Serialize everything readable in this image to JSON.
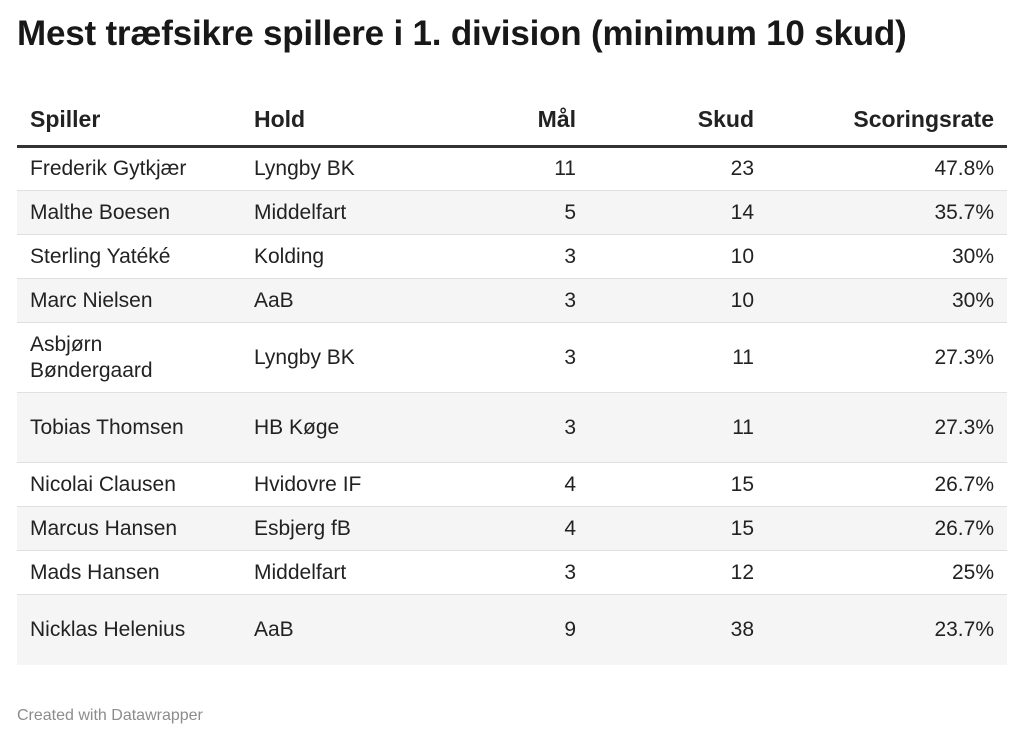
{
  "title": "Mest træfsikre spillere i 1. division (minimum 10 skud)",
  "footer": "Created with Datawrapper",
  "chart_data": {
    "type": "table",
    "title": "Mest træfsikre spillere i 1. division (minimum 10 skud)",
    "columns": [
      "Spiller",
      "Hold",
      "Mål",
      "Skud",
      "Scoringsrate"
    ],
    "rows": [
      [
        "Frederik Gytkjær",
        "Lyngby BK",
        "11",
        "23",
        "47.8%"
      ],
      [
        "Malthe Boesen",
        "Middelfart",
        "5",
        "14",
        "35.7%"
      ],
      [
        "Sterling Yatéké",
        "Kolding",
        "3",
        "10",
        "30%"
      ],
      [
        "Marc Nielsen",
        "AaB",
        "3",
        "10",
        "30%"
      ],
      [
        "Asbjørn Bøndergaard",
        "Lyngby BK",
        "3",
        "11",
        "27.3%"
      ],
      [
        "Tobias Thomsen",
        "HB Køge",
        "3",
        "11",
        "27.3%"
      ],
      [
        "Nicolai Clausen",
        "Hvidovre IF",
        "4",
        "15",
        "26.7%"
      ],
      [
        "Marcus Hansen",
        "Esbjerg fB",
        "4",
        "15",
        "26.7%"
      ],
      [
        "Mads Hansen",
        "Middelfart",
        "3",
        "12",
        "25%"
      ],
      [
        "Nicklas Helenius",
        "AaB",
        "9",
        "38",
        "23.7%"
      ]
    ]
  }
}
